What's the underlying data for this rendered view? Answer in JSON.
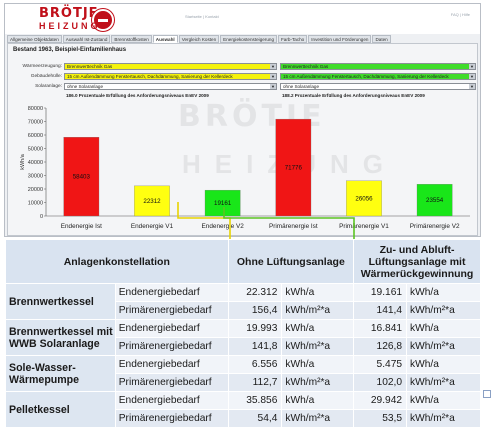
{
  "header": {
    "logo_top": "BRÖTJE",
    "logo_bottom": "HEIZUNG",
    "nav": "Startseite | Kontakt",
    "version": "FAQ | Hilfe"
  },
  "tabs": [
    {
      "label": "Allgemeine Objektdaten",
      "active": false
    },
    {
      "label": "Auswahl Ist-Zustand",
      "active": false
    },
    {
      "label": "Brennstoffkosten",
      "active": false
    },
    {
      "label": "Auswahl",
      "active": true
    },
    {
      "label": "Vergleich Kosten",
      "active": false
    },
    {
      "label": "Energiekostensteigerung",
      "active": false
    },
    {
      "label": "Farb-Tacho",
      "active": false
    },
    {
      "label": "Investition und Förderungen",
      "active": false
    },
    {
      "label": "Daten",
      "active": false
    }
  ],
  "panel": {
    "title": "Bestand 1963, Beispiel-Einfamilienhaus",
    "rows": [
      {
        "label": "Wärmeerzeugung:",
        "left": "Brennwerttechnik Gas",
        "right": "Brennwerttechnik Gas"
      },
      {
        "label": "Gebäudehülle:",
        "left": "15 cm Außendämmung Fenstertausch, Dachdämmung, Sanierung der Kellerdeck",
        "right": "15 cm Außendämmung Fenstertausch, Dachdämmung, Sanierung der Kellerdeck"
      },
      {
        "label": "Solaranlage:",
        "left": "ohne Solaranlage",
        "right": "ohne Solaranlage"
      }
    ],
    "req_left": "186.0 Prozentuale Erfüllung des Anforderungsniveaus EnEV 2009",
    "req_right": "188.2 Prozentuale Erfüllung des Anforderungsniveaus EnEV 2009",
    "watermark_top": "BRÖTJE",
    "watermark_bottom": "HEIZUNG"
  },
  "chart_data": {
    "type": "bar",
    "ylabel": "kWh/a",
    "ylim": [
      0,
      80000
    ],
    "yticks": [
      0,
      10000,
      20000,
      30000,
      40000,
      50000,
      60000,
      70000,
      80000
    ],
    "categories": [
      "Endenergie Ist",
      "Endenergie V1",
      "Endenergie V2",
      "Primärenergie Ist",
      "Primärenergie V1",
      "Primärenergie V2"
    ],
    "values": [
      58403,
      22312,
      19161,
      71776,
      26056,
      23554
    ],
    "labels": [
      "58403",
      "22312",
      "19161",
      "71776",
      "26056",
      "23554"
    ],
    "colors": [
      "#f01515",
      "#ffff10",
      "#19e619",
      "#f01515",
      "#ffff10",
      "#19e619"
    ],
    "grid": false
  },
  "table": {
    "header_left": "Anlagenkonstellation",
    "header_mid": "Ohne Lüftungsanlage",
    "header_right": "Zu- und Abluft-Lüftungsanlage mit Wärmerückgewinnung",
    "groups": [
      {
        "name": "Brennwertkessel",
        "rows": [
          {
            "label": "Endenergiebedarf",
            "v1": "22.312",
            "u1": "kWh/a",
            "v2": "19.161",
            "u2": "kWh/a"
          },
          {
            "label": "Primärenergiebedarf",
            "v1": "156,4",
            "u1": "kWh/m²*a",
            "v2": "141,4",
            "u2": "kWh/m²*a"
          }
        ]
      },
      {
        "name": "Brennwertkessel mit WWB Solaranlage",
        "rows": [
          {
            "label": "Endenergiebedarf",
            "v1": "19.993",
            "u1": "kWh/a",
            "v2": "16.841",
            "u2": "kWh/a"
          },
          {
            "label": "Primärenergiebedarf",
            "v1": "141,8",
            "u1": "kWh/m²*a",
            "v2": "126,8",
            "u2": "kWh/m²*a"
          }
        ]
      },
      {
        "name": "Sole-Wasser-Wärmepumpe",
        "rows": [
          {
            "label": "Endenergiebedarf",
            "v1": "6.556",
            "u1": "kWh/a",
            "v2": "5.475",
            "u2": "kWh/a"
          },
          {
            "label": "Primärenergiebedarf",
            "v1": "112,7",
            "u1": "kWh/m²*a",
            "v2": "102,0",
            "u2": "kWh/m²*a"
          }
        ]
      },
      {
        "name": "Pelletkessel",
        "rows": [
          {
            "label": "Endenergiebedarf",
            "v1": "35.856",
            "u1": "kWh/a",
            "v2": "29.942",
            "u2": "kWh/a"
          },
          {
            "label": "Primärenergiebedarf",
            "v1": "54,4",
            "u1": "kWh/m²*a",
            "v2": "53,5",
            "u2": "kWh/m²*a"
          }
        ]
      }
    ]
  },
  "colors": {
    "arrow_yellow": "#e8d400",
    "arrow_green": "#5cc423",
    "table_header": "#d9e3f0"
  }
}
